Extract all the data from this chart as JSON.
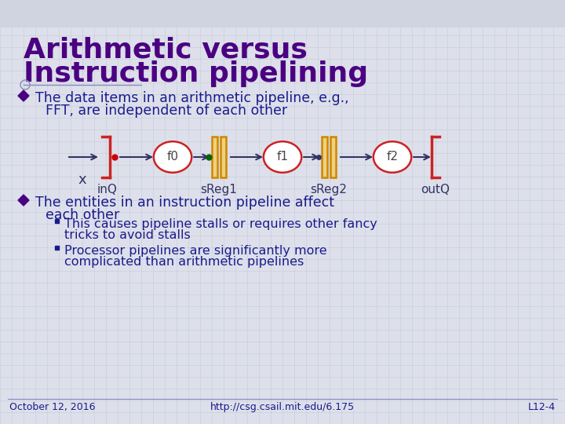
{
  "title_line1": "Arithmetic versus",
  "title_line2": "Instruction pipelining",
  "title_color": "#4b0082",
  "bg_color": "#dde0ea",
  "grid_color": "#b8bdd0",
  "bullet1_text_line1": "The data items in an arithmetic pipeline, e.g.,",
  "bullet1_text_line2": "FFT, are independent of each other",
  "bullet2_text_line1": "The entities in an instruction pipeline affect",
  "bullet2_text_line2": "each other",
  "sub_bullet1_line1": "This causes pipeline stalls or requires other fancy",
  "sub_bullet1_line2": "tricks to avoid stalls",
  "sub_bullet2_line1": "Processor pipelines are significantly more",
  "sub_bullet2_line2": "complicated than arithmetic pipelines",
  "footer_left": "October 12, 2016",
  "footer_center": "http://csg.csail.mit.edu/6.175",
  "footer_right": "L12-4",
  "text_color": "#1a1a8c",
  "pipeline_labels": [
    "f0",
    "f1",
    "f2"
  ],
  "queue_labels": [
    "inQ",
    "sReg1",
    "sReg2",
    "outQ"
  ],
  "pipeline_text_color": "#444444",
  "circle_edge_color": "#cc2222",
  "circle_face_color": "#ffffff",
  "rect_edge_color": "#cc8800",
  "rect_face_color": "#f0d080",
  "bracket_color": "#cc2222",
  "arrow_color": "#333366",
  "dot_red_color": "#cc0000",
  "dot_green_color": "#006600",
  "bullet_diamond_color": "#4b0082",
  "x_label_color": "#333366",
  "queue_label_color": "#333366",
  "title_fontsize": 26,
  "body_fontsize": 12.5,
  "sub_fontsize": 11.5,
  "footer_fontsize": 9,
  "pipeline_label_fontsize": 11,
  "queue_label_fontsize": 11
}
